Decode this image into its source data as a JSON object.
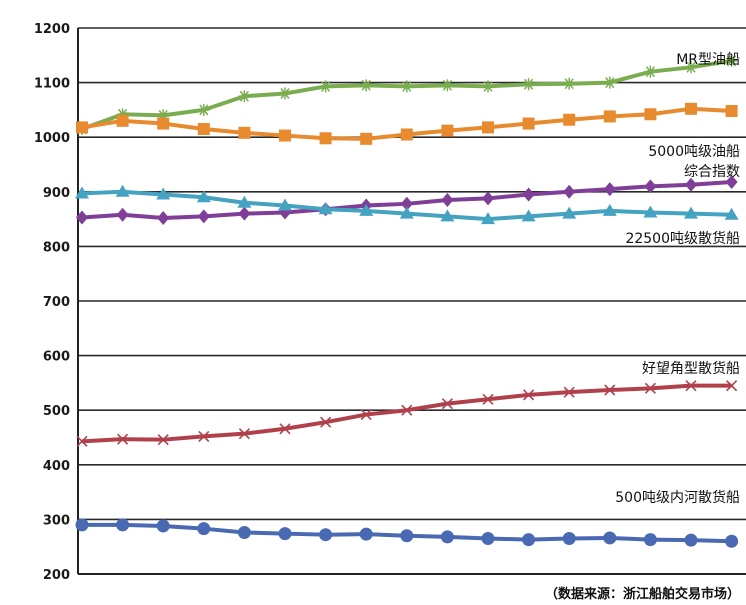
{
  "chart_data": {
    "type": "line",
    "ylim": [
      200,
      1200
    ],
    "yticks": [
      "200",
      "300",
      "400",
      "500",
      "600",
      "700",
      "800",
      "900",
      "1000",
      "1100",
      "1200"
    ],
    "grid": true,
    "x": [
      1,
      2,
      3,
      4,
      5,
      6,
      7,
      8,
      9,
      10,
      11,
      12,
      13,
      14,
      15,
      16,
      17
    ],
    "series": [
      {
        "name": "MR型油船",
        "label_lines": [
          "MR型油船"
        ],
        "color": "#7aad4f",
        "marker": "star",
        "values": [
          1015,
          1042,
          1040,
          1050,
          1075,
          1080,
          1093,
          1095,
          1093,
          1095,
          1093,
          1097,
          1098,
          1100,
          1120,
          1128,
          1140
        ]
      },
      {
        "name": "5000吨级油船",
        "label_lines": [
          "5000吨级油船"
        ],
        "color": "#e88a2e",
        "marker": "square",
        "values": [
          1018,
          1030,
          1025,
          1015,
          1008,
          1003,
          998,
          997,
          1005,
          1012,
          1018,
          1025,
          1032,
          1038,
          1042,
          1052,
          1048
        ]
      },
      {
        "name": "综合指数",
        "label_lines": [
          "综合指数"
        ],
        "color": "#7f3f98",
        "marker": "diamond",
        "values": [
          853,
          858,
          852,
          855,
          860,
          862,
          868,
          875,
          878,
          885,
          888,
          895,
          900,
          905,
          910,
          913,
          918
        ]
      },
      {
        "name": "22500吨级散货船",
        "label_lines": [
          "22500吨级散货船"
        ],
        "color": "#45a3c2",
        "marker": "triangle",
        "values": [
          897,
          900,
          895,
          890,
          880,
          875,
          868,
          865,
          860,
          855,
          850,
          855,
          860,
          865,
          862,
          860,
          858
        ]
      },
      {
        "name": "好望角型散货船",
        "label_lines": [
          "好望角型散货船"
        ],
        "color": "#b0414b",
        "marker": "x",
        "values": [
          443,
          447,
          446,
          452,
          457,
          466,
          478,
          492,
          500,
          512,
          520,
          528,
          533,
          537,
          540,
          545,
          545
        ]
      },
      {
        "name": "500吨级内河散货船",
        "label_lines": [
          "500吨级内河散货船"
        ],
        "color": "#4a69b3",
        "marker": "circle",
        "values": [
          290,
          290,
          288,
          283,
          276,
          274,
          272,
          273,
          270,
          268,
          265,
          263,
          265,
          266,
          263,
          262,
          260
        ]
      }
    ],
    "source": "（数据来源：浙江船舶交易市场）"
  }
}
